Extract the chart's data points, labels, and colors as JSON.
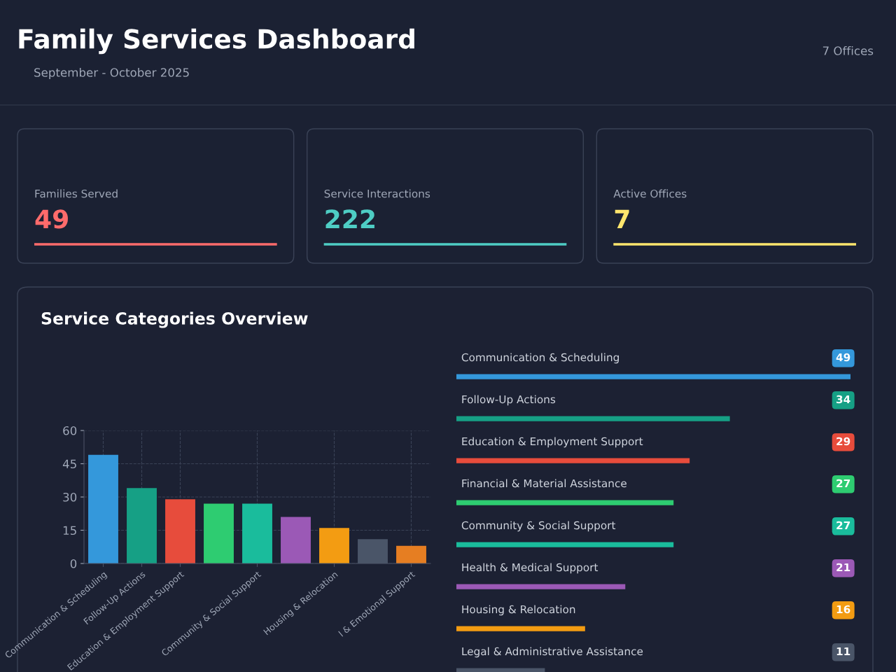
{
  "chart_data": [
    {
      "type": "other",
      "title": "Family Services Dashboard",
      "subtitle": "September - October 2025",
      "annotations": [
        "7 Offices"
      ],
      "categories": [
        "Families Served",
        "Service Interactions",
        "Active Offices"
      ],
      "values": [
        49,
        222,
        7
      ],
      "colors": [
        "#ff6b6b",
        "#4ecdc4",
        "#ffe66d"
      ],
      "data_labels": true
    },
    {
      "type": "bar",
      "title": "Service Categories Overview",
      "categories": [
        "Communication & Scheduling",
        "Follow-Up Actions",
        "Education & Employment Support",
        null,
        "Community & Social Support",
        null,
        "Housing & Relocation",
        null,
        "l & Emotional Support"
      ],
      "values": [
        49,
        34,
        29,
        27,
        27,
        21,
        16,
        11,
        8
      ],
      "colors": [
        "#3498db",
        "#16a085",
        "#e74c3c",
        "#2ecc71",
        "#1abc9c",
        "#9b59b6",
        "#f39c12",
        "#4a5568",
        "#e67e22"
      ],
      "ylim": [
        0,
        60
      ],
      "yticks": [
        0,
        15,
        30,
        45,
        60
      ],
      "grid": true
    },
    {
      "type": "bar",
      "orientation": "horizontal",
      "categories": [
        "Communication & Scheduling",
        "Follow-Up Actions",
        "Education & Employment Support",
        "Financial & Material Assistance",
        "Community & Social Support",
        "Health & Medical Support",
        "Housing & Relocation",
        "Legal & Administrative Assistance"
      ],
      "values": [
        49,
        34,
        29,
        27,
        27,
        21,
        16,
        11
      ],
      "colors": [
        "#3498db",
        "#16a085",
        "#e74c3c",
        "#2ecc71",
        "#1abc9c",
        "#9b59b6",
        "#f39c12",
        "#4a5568"
      ],
      "data_labels": true
    }
  ]
}
